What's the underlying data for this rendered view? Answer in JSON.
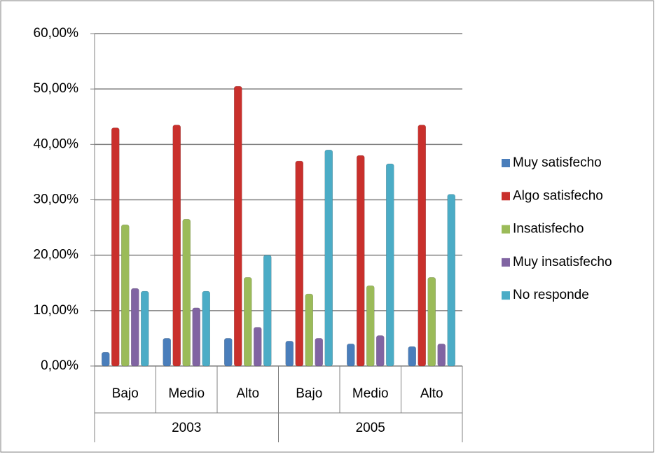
{
  "chart_data": {
    "type": "bar",
    "categories": [
      "Bajo",
      "Medio",
      "Alto",
      "Bajo",
      "Medio",
      "Alto"
    ],
    "groups": [
      "2003",
      "2005"
    ],
    "series": [
      {
        "name": "Muy satisfecho",
        "color": "#4a7ebb",
        "values": [
          2.5,
          5,
          5,
          4.5,
          4,
          3.5
        ]
      },
      {
        "name": "Algo satisfecho",
        "color": "#c9302c",
        "values": [
          43,
          43.5,
          50.5,
          37,
          38,
          43.5
        ]
      },
      {
        "name": "Insatisfecho",
        "color": "#9bbb59",
        "values": [
          25.5,
          26.5,
          16,
          13,
          14.5,
          16
        ]
      },
      {
        "name": "Muy insatisfecho",
        "color": "#8064a2",
        "values": [
          14,
          10.5,
          7,
          5,
          5.5,
          4
        ]
      },
      {
        "name": "No responde",
        "color": "#4bacc6",
        "values": [
          13.5,
          13.5,
          20,
          39,
          36.5,
          31
        ]
      }
    ],
    "ylim": [
      0,
      60
    ],
    "yticks": [
      {
        "value": 0,
        "label": "0,00%"
      },
      {
        "value": 10,
        "label": "10,00%"
      },
      {
        "value": 20,
        "label": "20,00%"
      },
      {
        "value": 30,
        "label": "30,00%"
      },
      {
        "value": 40,
        "label": "40,00%"
      },
      {
        "value": 50,
        "label": "50,00%"
      },
      {
        "value": 60,
        "label": "60,00%"
      }
    ],
    "grid": true,
    "legend": "right"
  }
}
